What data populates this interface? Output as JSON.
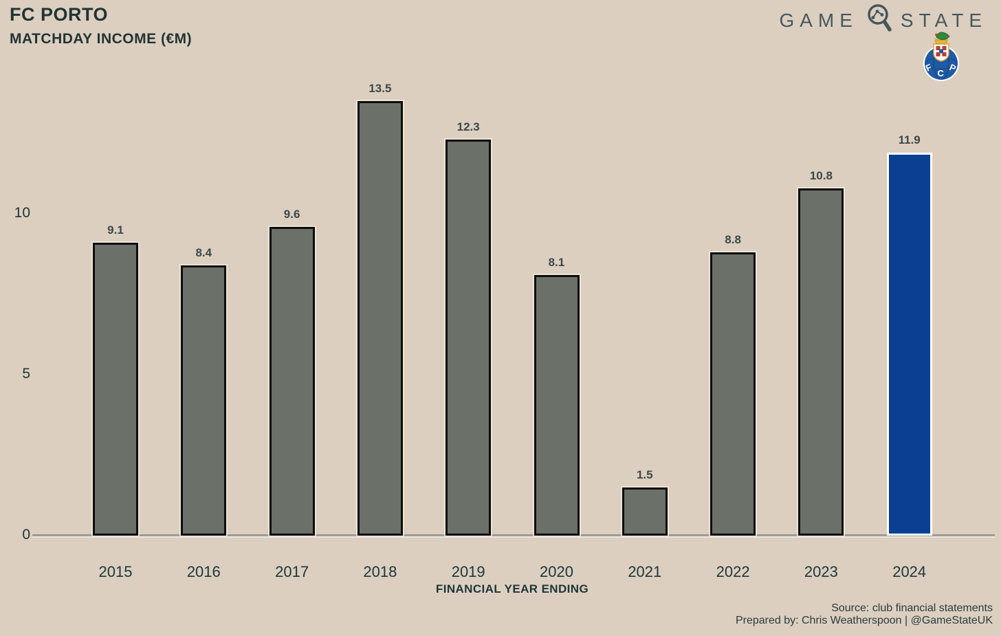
{
  "header": {
    "title": "FC PORTO",
    "subtitle": "MATCHDAY INCOME (€M)"
  },
  "brand": {
    "logo_word_left": "GAME",
    "logo_word_right": "STATE",
    "crest_letters": [
      "F",
      "C",
      "P"
    ]
  },
  "chart_data": {
    "type": "bar",
    "title": "FC PORTO — MATCHDAY INCOME (€M)",
    "categories": [
      "2015",
      "2016",
      "2017",
      "2018",
      "2019",
      "2020",
      "2021",
      "2022",
      "2023",
      "2024"
    ],
    "values": [
      9.1,
      8.4,
      9.6,
      13.5,
      12.3,
      8.1,
      1.5,
      8.8,
      10.8,
      11.9
    ],
    "xlabel": "FINANCIAL YEAR ENDING",
    "ylabel": "",
    "yticks": [
      0,
      5,
      10
    ],
    "ylim": [
      0,
      14.5
    ],
    "grid": false,
    "legend": false,
    "value_label_decimals": 1,
    "bar_color": "#6b7168",
    "bar_border_color": "#0d0d0d",
    "highlight_index": 9,
    "highlight_color": "#0b3f92",
    "highlight_border_color": "#ffffff"
  },
  "footer": {
    "source": "Source: club financial statements",
    "prepared_by": "Prepared by: Chris Weatherspoon | @GameStateUK"
  },
  "colors": {
    "background": "#dccfc0",
    "text_dark": "#223434",
    "logo_text": "#46575c",
    "axis_line": "#9b9b97",
    "value_label": "#3b4848",
    "porto_blue": "#0b3f92"
  }
}
